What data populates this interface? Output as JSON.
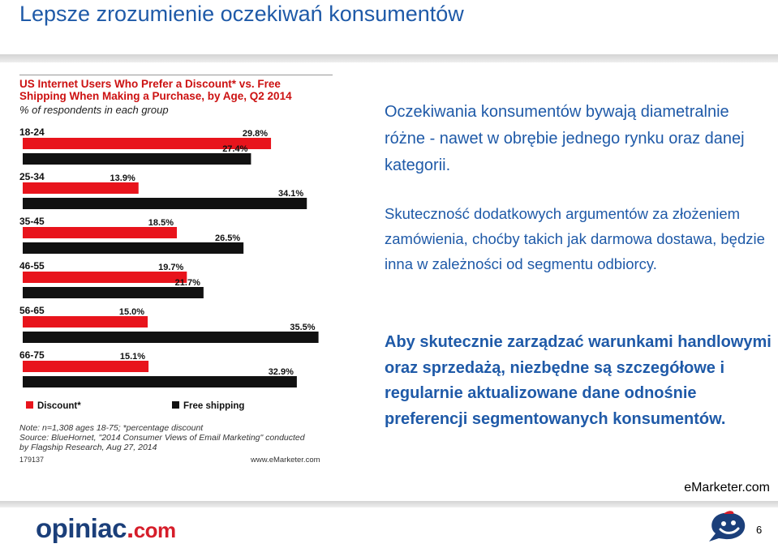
{
  "slide": {
    "title": "Lepsze zrozumienie oczekiwań konsumentów",
    "para1": "Oczekiwania konsumentów bywają diametralnie różne - nawet w obrębie jednego rynku oraz danej kategorii.",
    "para2": "Skuteczność dodatkowych argumentów za złożeniem zamówienia, choćby takich jak darmowa dostawa, będzie inna w zależności od segmentu odbiorcy.",
    "para3": "Aby skutecznie zarządzać warunkami handlowymi oraz sprzedażą, niezbędne są szczegółowe i regularnie aktualizowane dane odnośnie preferencji segmentowanych konsumentów.",
    "footer_source": "eMarketer.com",
    "page_number": "6",
    "logo_main": "opiniac",
    "logo_dot": ".",
    "logo_tld": "com"
  },
  "chart_data": {
    "type": "bar",
    "orientation": "horizontal",
    "title": "US Internet Users Who Prefer a Discount* vs. Free Shipping When Making a Purchase, by Age, Q2 2014",
    "subtitle": "% of respondents in each group",
    "categories": [
      "18-24",
      "25-34",
      "35-45",
      "46-55",
      "56-65",
      "66-75"
    ],
    "series": [
      {
        "name": "Discount*",
        "color": "#e8141c",
        "values": [
          29.8,
          13.9,
          18.5,
          19.7,
          15.0,
          15.1
        ],
        "labels": [
          "29.8%",
          "13.9%",
          "18.5%",
          "19.7%",
          "15.0%",
          "15.1%"
        ]
      },
      {
        "name": "Free shipping",
        "color": "#111111",
        "values": [
          27.4,
          34.1,
          26.5,
          21.7,
          35.5,
          32.9
        ],
        "labels": [
          "27.4%",
          "34.1%",
          "26.5%",
          "21.7%",
          "35.5%",
          "32.9%"
        ]
      }
    ],
    "xlim": [
      0,
      37
    ],
    "legend_position": "bottom",
    "notes": [
      "Note: n=1,308 ages 18-75; *percentage discount",
      "Source: BlueHornet, \"2014 Consumer Views of Email Marketing\" conducted",
      "by Flagship Research, Aug 27, 2014"
    ],
    "chart_code": "179137",
    "brand": "www.eMarketer.com"
  },
  "colors": {
    "title_blue": "#1f5aa8",
    "chart_red": "#e8141c",
    "chart_black": "#111111",
    "logo_navy": "#1b3f7a",
    "logo_red": "#d61d2a"
  }
}
